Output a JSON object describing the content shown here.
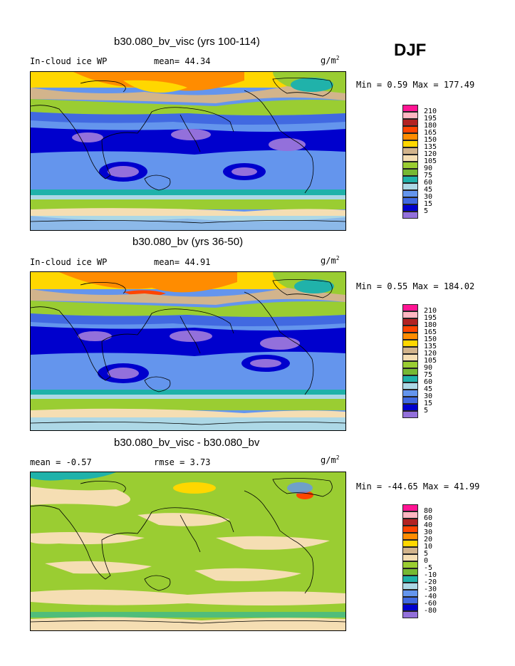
{
  "season": "DJF",
  "units_base": "g/m",
  "units_exp": "2",
  "palette": {
    "c210": "#ff1493",
    "c195": "#ffb6c1",
    "c180": "#b22222",
    "c165": "#ff4500",
    "c150": "#ff8c00",
    "c135": "#ffd700",
    "c120": "#d2b48c",
    "c105": "#f5deb3",
    "c90": "#9acd32",
    "c75": "#76b833",
    "c60": "#20b2aa",
    "c45": "#add8e6",
    "c30": "#6495ed",
    "c15": "#4169e1",
    "c5": "#0000cd",
    "clow": "#9370db"
  },
  "panels": [
    {
      "title": "b30.080_bv_visc (yrs 100-114)",
      "left_label": "In-cloud ice WP",
      "mid_label": "mean=  44.34",
      "stats": "Min =   0.59  Max = 177.49"
    },
    {
      "title": "b30.080_bv (yrs 36-50)",
      "left_label": "In-cloud ice WP",
      "mid_label": "mean=  44.91",
      "stats": "Min =   0.55  Max = 184.02"
    },
    {
      "title": "b30.080_bv_visc - b30.080_bv",
      "left_label": "mean =   -0.57",
      "mid_label": "rmse =   3.73",
      "stats": "Min = -44.65  Max =  41.99"
    }
  ],
  "legend_abs": [
    "210",
    "195",
    "180",
    "165",
    "150",
    "135",
    "120",
    "105",
    "90",
    "75",
    "60",
    "45",
    "30",
    "15",
    "5"
  ],
  "legend_diff": [
    "80",
    "60",
    "40",
    "30",
    "20",
    "10",
    "5",
    "0",
    "-5",
    "-10",
    "-20",
    "-30",
    "-40",
    "-60",
    "-80"
  ]
}
